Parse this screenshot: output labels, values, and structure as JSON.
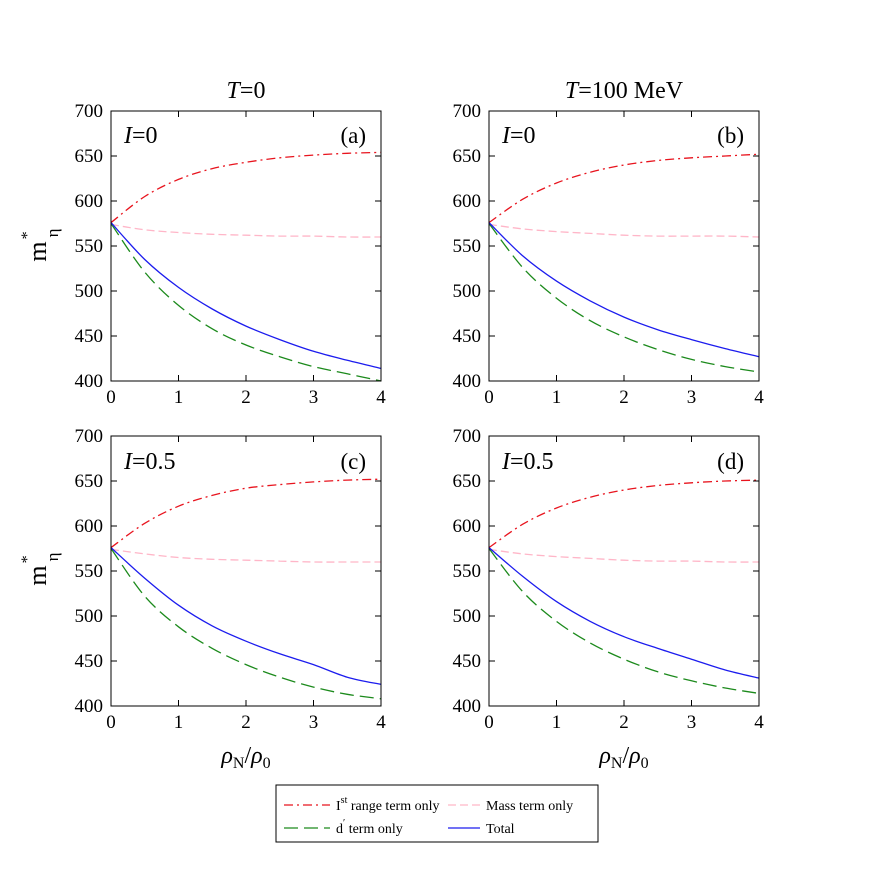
{
  "figure": {
    "col_titles": [
      {
        "italic": "T",
        "rest": "=0"
      },
      {
        "italic": "T",
        "rest": "=100 MeV"
      }
    ],
    "ylabel": {
      "main": "m",
      "sup": "*",
      "sub": "η"
    },
    "xlabel": {
      "rho": "ρ",
      "sub": "N",
      "slash": "/",
      "rho0": "ρ",
      "sub0": "0"
    }
  },
  "legend": {
    "position": "bottom-center",
    "entries": [
      {
        "key": "range",
        "prefix": "I",
        "sup": "st",
        "text": " range term only"
      },
      {
        "key": "mass",
        "prefix": "",
        "sup": "",
        "text": "Mass term only"
      },
      {
        "key": "dprime",
        "prefix": "d",
        "sup": "′",
        "text": " term only"
      },
      {
        "key": "total",
        "prefix": "",
        "sup": "",
        "text": "Total"
      }
    ]
  },
  "styles": {
    "range": {
      "color": "#e8141e",
      "dash": "9,4,2,4"
    },
    "mass": {
      "color": "#ffb6c8",
      "dash": "8,4"
    },
    "dprime": {
      "color": "#1c8a1c",
      "dash": "14,6"
    },
    "total": {
      "color": "#1c1cee",
      "dash": ""
    }
  },
  "chart_data": [
    {
      "type": "line",
      "panel": "(a)",
      "iso": {
        "italic": "I",
        "rest": "=0"
      },
      "xlim": [
        0,
        4
      ],
      "ylim": [
        400,
        700
      ],
      "xticks": [
        0,
        1,
        2,
        3,
        4
      ],
      "yticks": [
        400,
        450,
        500,
        550,
        600,
        650,
        700
      ],
      "x": [
        0,
        0.5,
        1,
        1.5,
        2,
        2.5,
        3,
        3.5,
        4
      ],
      "series": [
        {
          "key": "range",
          "values": [
            576,
            605,
            624,
            636,
            643,
            648,
            651,
            653,
            654
          ]
        },
        {
          "key": "mass",
          "values": [
            574,
            568,
            565,
            563,
            562,
            561,
            561,
            560,
            560
          ]
        },
        {
          "key": "dprime",
          "values": [
            575,
            521,
            484,
            458,
            440,
            427,
            416,
            408,
            400
          ]
        },
        {
          "key": "total",
          "values": [
            576,
            535,
            504,
            480,
            461,
            446,
            433,
            423,
            414
          ]
        }
      ]
    },
    {
      "type": "line",
      "panel": "(b)",
      "iso": {
        "italic": "I",
        "rest": "=0"
      },
      "xlim": [
        0,
        4
      ],
      "ylim": [
        400,
        700
      ],
      "xticks": [
        0,
        1,
        2,
        3,
        4
      ],
      "yticks": [
        400,
        450,
        500,
        550,
        600,
        650,
        700
      ],
      "x": [
        0,
        0.5,
        1,
        1.5,
        2,
        2.5,
        3,
        3.5,
        4
      ],
      "series": [
        {
          "key": "range",
          "values": [
            576,
            602,
            620,
            632,
            640,
            645,
            648,
            650,
            652
          ]
        },
        {
          "key": "mass",
          "values": [
            574,
            569,
            566,
            564,
            562,
            561,
            561,
            561,
            560
          ]
        },
        {
          "key": "dprime",
          "values": [
            575,
            526,
            492,
            467,
            449,
            435,
            424,
            416,
            410
          ]
        },
        {
          "key": "total",
          "values": [
            576,
            539,
            511,
            489,
            471,
            457,
            446,
            436,
            427
          ]
        }
      ]
    },
    {
      "type": "line",
      "panel": "(c)",
      "iso": {
        "italic": "I",
        "rest": "=0.5"
      },
      "xlim": [
        0,
        4
      ],
      "ylim": [
        400,
        700
      ],
      "xticks": [
        0,
        1,
        2,
        3,
        4
      ],
      "yticks": [
        400,
        450,
        500,
        550,
        600,
        650,
        700
      ],
      "x": [
        0,
        0.5,
        1,
        1.5,
        2,
        2.5,
        3,
        3.5,
        4
      ],
      "series": [
        {
          "key": "range",
          "values": [
            576,
            603,
            622,
            634,
            642,
            646,
            649,
            651,
            652
          ]
        },
        {
          "key": "mass",
          "values": [
            574,
            569,
            565,
            563,
            562,
            561,
            560,
            560,
            560
          ]
        },
        {
          "key": "dprime",
          "values": [
            575,
            522,
            488,
            464,
            446,
            432,
            421,
            413,
            408
          ]
        },
        {
          "key": "total",
          "values": [
            576,
            542,
            512,
            489,
            472,
            458,
            446,
            432,
            424
          ]
        }
      ]
    },
    {
      "type": "line",
      "panel": "(d)",
      "iso": {
        "italic": "I",
        "rest": "=0.5"
      },
      "xlim": [
        0,
        4
      ],
      "ylim": [
        400,
        700
      ],
      "xticks": [
        0,
        1,
        2,
        3,
        4
      ],
      "yticks": [
        400,
        450,
        500,
        550,
        600,
        650,
        700
      ],
      "x": [
        0,
        0.5,
        1,
        1.5,
        2,
        2.5,
        3,
        3.5,
        4
      ],
      "series": [
        {
          "key": "range",
          "values": [
            576,
            602,
            620,
            632,
            640,
            645,
            648,
            650,
            651
          ]
        },
        {
          "key": "mass",
          "values": [
            574,
            569,
            566,
            564,
            562,
            561,
            561,
            560,
            560
          ]
        },
        {
          "key": "dprime",
          "values": [
            575,
            527,
            494,
            470,
            452,
            438,
            428,
            420,
            414
          ]
        },
        {
          "key": "total",
          "values": [
            576,
            544,
            516,
            494,
            477,
            464,
            452,
            440,
            431
          ]
        }
      ]
    }
  ]
}
